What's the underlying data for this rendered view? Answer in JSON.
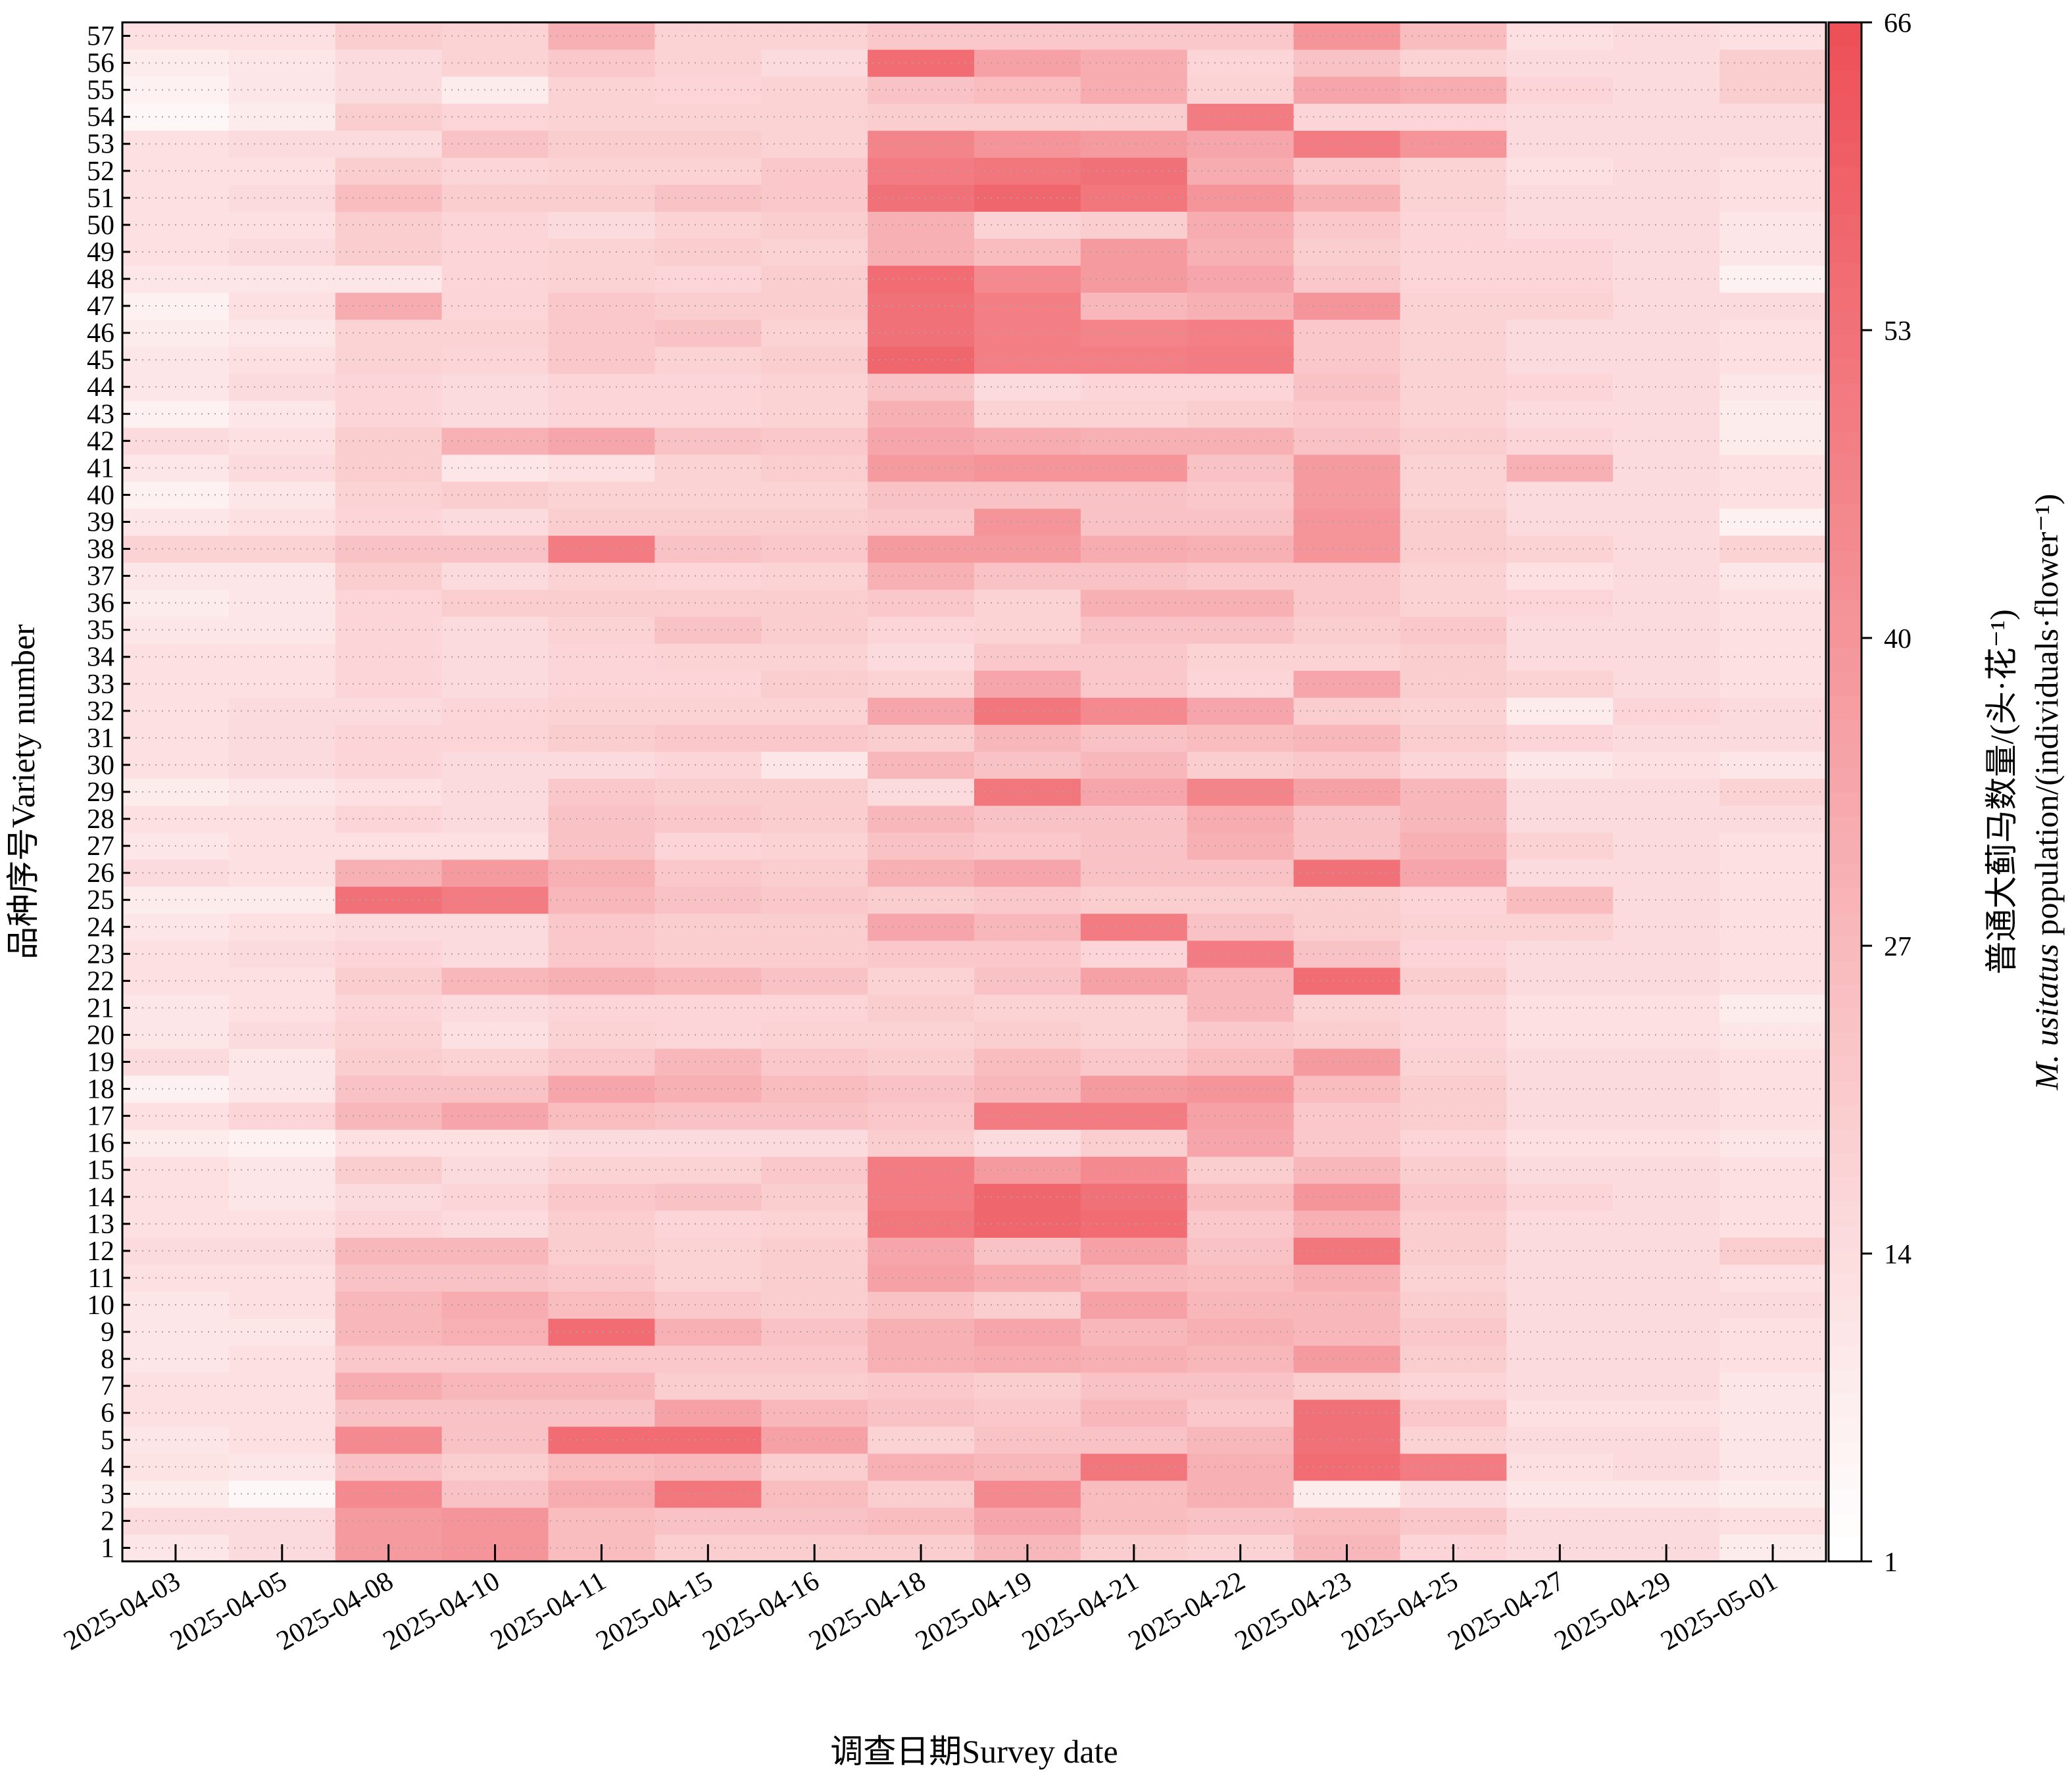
{
  "chart_data": {
    "type": "heatmap",
    "title": "",
    "xlabel": "调查日期Survey date",
    "ylabel": "品种序号Variety number",
    "colorbar_label_line1": "普通大蓟马数量/(头·花⁻¹)",
    "colorbar_label_line2_italic": "M. usitatus",
    "colorbar_label_line2_rest": " population/(individuals·flower⁻¹)",
    "x_categories": [
      "2025-04-03",
      "2025-04-05",
      "2025-04-08",
      "2025-04-10",
      "2025-04-11",
      "2025-04-15",
      "2025-04-16",
      "2025-04-18",
      "2025-04-19",
      "2025-04-21",
      "2025-04-22",
      "2025-04-23",
      "2025-04-25",
      "2025-04-27",
      "2025-04-29",
      "2025-05-01"
    ],
    "y_categories": [
      "1",
      "2",
      "3",
      "4",
      "5",
      "6",
      "7",
      "8",
      "9",
      "10",
      "11",
      "12",
      "13",
      "14",
      "15",
      "16",
      "17",
      "18",
      "19",
      "20",
      "21",
      "22",
      "23",
      "24",
      "25",
      "26",
      "27",
      "28",
      "29",
      "30",
      "31",
      "32",
      "33",
      "34",
      "35",
      "36",
      "37",
      "38",
      "39",
      "40",
      "41",
      "42",
      "43",
      "44",
      "45",
      "46",
      "47",
      "48",
      "49",
      "50",
      "51",
      "52",
      "53",
      "54",
      "55",
      "56",
      "57"
    ],
    "values": [
      [
        10,
        14,
        38,
        40,
        26,
        20,
        20,
        20,
        28,
        20,
        18,
        28,
        16,
        14,
        14,
        8
      ],
      [
        14,
        14,
        38,
        40,
        26,
        24,
        24,
        26,
        34,
        26,
        24,
        26,
        22,
        14,
        14,
        12
      ],
      [
        8,
        4,
        44,
        24,
        32,
        52,
        26,
        20,
        44,
        26,
        30,
        8,
        14,
        10,
        10,
        8
      ],
      [
        11,
        10,
        24,
        20,
        26,
        28,
        20,
        30,
        28,
        52,
        30,
        56,
        50,
        12,
        14,
        10
      ],
      [
        10,
        12,
        44,
        24,
        56,
        56,
        36,
        18,
        24,
        24,
        28,
        54,
        18,
        14,
        14,
        10
      ],
      [
        12,
        12,
        24,
        24,
        24,
        36,
        28,
        24,
        22,
        28,
        22,
        54,
        22,
        12,
        12,
        10
      ],
      [
        12,
        12,
        32,
        28,
        28,
        20,
        20,
        22,
        20,
        24,
        24,
        20,
        16,
        14,
        14,
        10
      ],
      [
        10,
        12,
        22,
        22,
        22,
        22,
        22,
        30,
        32,
        30,
        28,
        38,
        20,
        14,
        14,
        12
      ],
      [
        10,
        10,
        28,
        30,
        56,
        30,
        24,
        30,
        34,
        28,
        30,
        28,
        22,
        14,
        14,
        12
      ],
      [
        10,
        12,
        28,
        32,
        26,
        22,
        20,
        24,
        20,
        36,
        28,
        28,
        20,
        14,
        14,
        14
      ],
      [
        12,
        12,
        24,
        24,
        22,
        18,
        20,
        36,
        32,
        28,
        26,
        30,
        18,
        14,
        14,
        12
      ],
      [
        14,
        14,
        28,
        28,
        20,
        18,
        20,
        34,
        24,
        36,
        24,
        52,
        20,
        14,
        14,
        20
      ],
      [
        12,
        12,
        16,
        14,
        20,
        16,
        18,
        52,
        58,
        56,
        22,
        30,
        20,
        14,
        14,
        12
      ],
      [
        12,
        10,
        14,
        16,
        22,
        24,
        20,
        50,
        58,
        54,
        26,
        40,
        22,
        16,
        14,
        12
      ],
      [
        12,
        10,
        20,
        14,
        18,
        18,
        22,
        50,
        38,
        44,
        20,
        28,
        20,
        14,
        14,
        12
      ],
      [
        8,
        6,
        12,
        12,
        14,
        14,
        14,
        20,
        14,
        20,
        34,
        22,
        16,
        12,
        12,
        10
      ],
      [
        12,
        16,
        28,
        34,
        26,
        24,
        24,
        22,
        50,
        50,
        36,
        22,
        20,
        14,
        14,
        12
      ],
      [
        6,
        10,
        24,
        24,
        34,
        30,
        26,
        24,
        28,
        38,
        40,
        26,
        20,
        14,
        14,
        12
      ],
      [
        14,
        10,
        20,
        18,
        22,
        28,
        22,
        20,
        26,
        22,
        26,
        38,
        18,
        14,
        14,
        12
      ],
      [
        10,
        14,
        18,
        12,
        18,
        16,
        18,
        18,
        20,
        18,
        22,
        20,
        16,
        12,
        12,
        10
      ],
      [
        10,
        12,
        16,
        14,
        16,
        16,
        16,
        20,
        18,
        18,
        28,
        18,
        16,
        12,
        12,
        8
      ],
      [
        12,
        12,
        20,
        28,
        30,
        28,
        24,
        18,
        24,
        36,
        28,
        56,
        20,
        14,
        14,
        12
      ],
      [
        12,
        14,
        16,
        14,
        22,
        20,
        20,
        22,
        22,
        16,
        50,
        24,
        16,
        14,
        14,
        12
      ],
      [
        10,
        12,
        14,
        14,
        22,
        20,
        20,
        34,
        28,
        50,
        24,
        20,
        18,
        18,
        14,
        12
      ],
      [
        8,
        8,
        54,
        50,
        28,
        24,
        22,
        20,
        22,
        20,
        20,
        20,
        16,
        26,
        14,
        12
      ],
      [
        14,
        12,
        30,
        38,
        30,
        22,
        20,
        30,
        34,
        24,
        24,
        54,
        34,
        14,
        14,
        12
      ],
      [
        10,
        12,
        12,
        12,
        24,
        16,
        18,
        24,
        22,
        24,
        30,
        24,
        30,
        18,
        14,
        12
      ],
      [
        12,
        12,
        16,
        14,
        24,
        22,
        20,
        28,
        24,
        24,
        32,
        24,
        28,
        14,
        14,
        14
      ],
      [
        8,
        10,
        12,
        14,
        22,
        20,
        20,
        14,
        52,
        34,
        46,
        36,
        28,
        14,
        14,
        18
      ],
      [
        12,
        14,
        16,
        14,
        14,
        16,
        10,
        28,
        24,
        28,
        20,
        22,
        16,
        10,
        12,
        10
      ],
      [
        12,
        14,
        16,
        16,
        20,
        22,
        22,
        20,
        28,
        24,
        26,
        28,
        20,
        16,
        14,
        14
      ],
      [
        12,
        14,
        14,
        16,
        18,
        18,
        18,
        34,
        52,
        44,
        34,
        20,
        18,
        8,
        16,
        14
      ],
      [
        12,
        12,
        16,
        14,
        16,
        16,
        20,
        18,
        34,
        22,
        16,
        34,
        20,
        18,
        14,
        12
      ],
      [
        12,
        12,
        16,
        14,
        16,
        18,
        18,
        14,
        22,
        22,
        18,
        18,
        20,
        14,
        14,
        12
      ],
      [
        10,
        10,
        16,
        14,
        18,
        24,
        20,
        16,
        18,
        24,
        24,
        20,
        22,
        14,
        14,
        12
      ],
      [
        8,
        10,
        16,
        20,
        20,
        20,
        20,
        22,
        18,
        30,
        30,
        22,
        18,
        16,
        14,
        12
      ],
      [
        10,
        10,
        20,
        14,
        18,
        16,
        18,
        30,
        24,
        24,
        22,
        22,
        18,
        12,
        14,
        10
      ],
      [
        18,
        18,
        24,
        24,
        50,
        24,
        22,
        38,
        38,
        32,
        30,
        40,
        20,
        18,
        14,
        18
      ],
      [
        10,
        12,
        16,
        14,
        20,
        20,
        20,
        22,
        40,
        24,
        24,
        40,
        20,
        14,
        14,
        6
      ],
      [
        6,
        10,
        18,
        20,
        18,
        18,
        18,
        24,
        24,
        24,
        22,
        38,
        18,
        14,
        14,
        12
      ],
      [
        10,
        14,
        20,
        10,
        12,
        18,
        20,
        38,
        40,
        40,
        24,
        38,
        18,
        30,
        14,
        12
      ],
      [
        14,
        12,
        20,
        30,
        34,
        24,
        22,
        34,
        32,
        30,
        30,
        24,
        20,
        16,
        14,
        8
      ],
      [
        6,
        10,
        16,
        14,
        16,
        16,
        18,
        30,
        18,
        18,
        20,
        22,
        18,
        14,
        14,
        8
      ],
      [
        10,
        14,
        16,
        14,
        16,
        16,
        18,
        24,
        14,
        16,
        16,
        24,
        18,
        16,
        14,
        10
      ],
      [
        10,
        12,
        18,
        16,
        22,
        18,
        20,
        58,
        48,
        48,
        50,
        22,
        18,
        14,
        14,
        12
      ],
      [
        8,
        10,
        18,
        18,
        22,
        24,
        18,
        54,
        48,
        46,
        48,
        22,
        18,
        14,
        14,
        12
      ],
      [
        6,
        12,
        32,
        16,
        22,
        20,
        20,
        54,
        48,
        28,
        30,
        40,
        18,
        18,
        14,
        14
      ],
      [
        10,
        10,
        10,
        16,
        18,
        16,
        20,
        56,
        44,
        38,
        34,
        22,
        16,
        16,
        14,
        6
      ],
      [
        12,
        14,
        20,
        16,
        18,
        20,
        18,
        30,
        26,
        38,
        30,
        20,
        16,
        16,
        14,
        10
      ],
      [
        12,
        12,
        20,
        16,
        14,
        18,
        20,
        30,
        18,
        20,
        32,
        22,
        16,
        14,
        14,
        10
      ],
      [
        12,
        14,
        26,
        20,
        20,
        24,
        22,
        54,
        58,
        52,
        40,
        30,
        18,
        14,
        14,
        12
      ],
      [
        12,
        12,
        20,
        16,
        18,
        18,
        22,
        50,
        52,
        54,
        32,
        22,
        18,
        12,
        14,
        12
      ],
      [
        12,
        14,
        14,
        24,
        20,
        20,
        18,
        46,
        40,
        38,
        34,
        50,
        40,
        14,
        14,
        14
      ],
      [
        4,
        8,
        20,
        16,
        18,
        18,
        18,
        20,
        20,
        20,
        50,
        16,
        16,
        14,
        14,
        14
      ],
      [
        6,
        10,
        14,
        8,
        18,
        16,
        18,
        24,
        26,
        32,
        18,
        34,
        32,
        16,
        14,
        20
      ],
      [
        8,
        10,
        14,
        18,
        22,
        18,
        14,
        56,
        36,
        32,
        16,
        24,
        18,
        14,
        14,
        20
      ],
      [
        12,
        12,
        20,
        18,
        30,
        18,
        18,
        22,
        22,
        22,
        22,
        40,
        26,
        12,
        14,
        12
      ]
    ],
    "colorscale": {
      "vmin": 1,
      "vmax": 66,
      "low_color": "#ffffff",
      "high_color": "#ee5058",
      "steps": 64
    },
    "colorbar_ticks": [
      "1",
      "14",
      "27",
      "40",
      "53",
      "66"
    ],
    "grid": "dotted horizontal lines at each row"
  }
}
